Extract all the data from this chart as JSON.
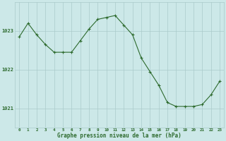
{
  "x": [
    0,
    1,
    2,
    3,
    4,
    5,
    6,
    7,
    8,
    9,
    10,
    11,
    12,
    13,
    14,
    15,
    16,
    17,
    18,
    19,
    20,
    21,
    22,
    23
  ],
  "y": [
    1022.85,
    1023.2,
    1022.9,
    1022.65,
    1022.45,
    1022.45,
    1022.45,
    1022.75,
    1023.05,
    1023.3,
    1023.35,
    1023.4,
    1023.15,
    1022.9,
    1022.3,
    1021.95,
    1021.6,
    1021.15,
    1021.05,
    1021.05,
    1021.05,
    1021.1,
    1021.35,
    1021.7
  ],
  "line_color": "#2d6a2d",
  "marker": "+",
  "bg_color": "#cce8e8",
  "grid_color": "#aacaca",
  "xlabel": "Graphe pression niveau de la mer (hPa)",
  "xlabel_color": "#2d6a2d",
  "yticks": [
    1021,
    1022,
    1023
  ],
  "ylim": [
    1020.5,
    1023.75
  ],
  "xlim": [
    -0.5,
    23.5
  ],
  "xtick_labels": [
    "0",
    "1",
    "2",
    "3",
    "4",
    "5",
    "6",
    "7",
    "8",
    "9",
    "10",
    "11",
    "12",
    "13",
    "14",
    "15",
    "16",
    "17",
    "18",
    "19",
    "20",
    "21",
    "22",
    "23"
  ],
  "tick_color": "#2d6a2d",
  "figsize": [
    3.2,
    2.0
  ],
  "dpi": 100
}
